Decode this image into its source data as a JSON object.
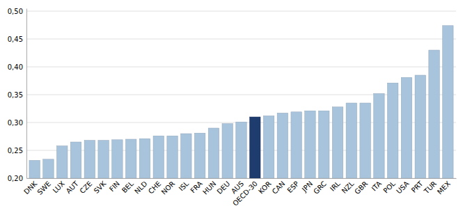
{
  "chart_data": {
    "type": "bar",
    "categories": [
      "DNK",
      "SWE",
      "LUX",
      "AUT",
      "CZE",
      "SVK",
      "FIN",
      "BEL",
      "NLD",
      "CHE",
      "NOR",
      "ISL",
      "FRA",
      "HUN",
      "DEU",
      "AUS",
      "OECD-30",
      "KOR",
      "CAN",
      "ESP",
      "JPN",
      "GRC",
      "IRL",
      "NZL",
      "GBR",
      "ITA",
      "POL",
      "USA",
      "PRT",
      "TUR",
      "MEX"
    ],
    "values": [
      0.232,
      0.234,
      0.258,
      0.265,
      0.268,
      0.268,
      0.269,
      0.27,
      0.271,
      0.276,
      0.276,
      0.28,
      0.281,
      0.29,
      0.298,
      0.301,
      0.31,
      0.312,
      0.317,
      0.319,
      0.321,
      0.321,
      0.328,
      0.335,
      0.335,
      0.352,
      0.371,
      0.381,
      0.385,
      0.43,
      0.474
    ],
    "colors": [
      "#a8c4dc",
      "#a8c4dc",
      "#a8c4dc",
      "#a8c4dc",
      "#a8c4dc",
      "#a8c4dc",
      "#a8c4dc",
      "#a8c4dc",
      "#a8c4dc",
      "#a8c4dc",
      "#a8c4dc",
      "#a8c4dc",
      "#a8c4dc",
      "#a8c4dc",
      "#a8c4dc",
      "#a8c4dc",
      "#1e3d6e",
      "#a8c4dc",
      "#a8c4dc",
      "#a8c4dc",
      "#a8c4dc",
      "#a8c4dc",
      "#a8c4dc",
      "#a8c4dc",
      "#a8c4dc",
      "#a8c4dc",
      "#a8c4dc",
      "#a8c4dc",
      "#a8c4dc",
      "#a8c4dc",
      "#a8c4dc"
    ],
    "ylim": [
      0.2,
      0.505
    ],
    "yticks": [
      {
        "value": 0.2,
        "label": "0,20"
      },
      {
        "value": 0.25,
        "label": "0,25"
      },
      {
        "value": 0.3,
        "label": "0,30"
      },
      {
        "value": 0.35,
        "label": "0,35"
      },
      {
        "value": 0.4,
        "label": "0,40"
      },
      {
        "value": 0.45,
        "label": "0,45"
      },
      {
        "value": 0.5,
        "label": "0,50"
      }
    ],
    "grid": true
  }
}
